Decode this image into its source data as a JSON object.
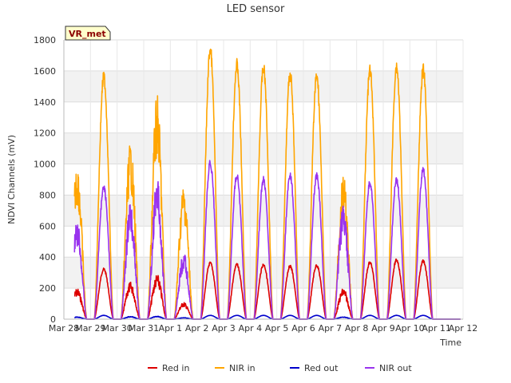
{
  "chart_data": {
    "type": "line",
    "title": "LED sensor",
    "xlabel": "Time",
    "ylabel": "NDVI Channels (mV)",
    "badge": "VR_met",
    "ylim": [
      0,
      1800
    ],
    "yticks": [
      0,
      200,
      400,
      600,
      800,
      1000,
      1200,
      1400,
      1600,
      1800
    ],
    "xlim": [
      0,
      15
    ],
    "xticks": [
      {
        "x": 0,
        "label": "Mar 28"
      },
      {
        "x": 1,
        "label": "Mar 29"
      },
      {
        "x": 2,
        "label": "Mar 30"
      },
      {
        "x": 3,
        "label": "Mar 31"
      },
      {
        "x": 4,
        "label": "Apr 1"
      },
      {
        "x": 5,
        "label": "Apr 2"
      },
      {
        "x": 6,
        "label": "Apr 3"
      },
      {
        "x": 7,
        "label": "Apr 4"
      },
      {
        "x": 8,
        "label": "Apr 5"
      },
      {
        "x": 9,
        "label": "Apr 6"
      },
      {
        "x": 10,
        "label": "Apr 7"
      },
      {
        "x": 11,
        "label": "Apr 8"
      },
      {
        "x": 12,
        "label": "Apr 9"
      },
      {
        "x": 13,
        "label": "Apr 10"
      },
      {
        "x": 14,
        "label": "Apr 11"
      },
      {
        "x": 15,
        "label": "Apr 12"
      }
    ],
    "series": [
      {
        "name": "Red in",
        "color": "#dd0000",
        "peaks": [
          {
            "day": 0.5,
            "value": 200
          },
          {
            "day": 1.5,
            "value": 330
          },
          {
            "day": 2.5,
            "value": 240
          },
          {
            "day": 3.5,
            "value": 290
          },
          {
            "day": 4.5,
            "value": 110
          },
          {
            "day": 5.5,
            "value": 370
          },
          {
            "day": 6.5,
            "value": 360
          },
          {
            "day": 7.5,
            "value": 360
          },
          {
            "day": 8.5,
            "value": 350
          },
          {
            "day": 9.5,
            "value": 355
          },
          {
            "day": 10.5,
            "value": 200
          },
          {
            "day": 11.5,
            "value": 375
          },
          {
            "day": 12.5,
            "value": 390
          },
          {
            "day": 13.5,
            "value": 385
          }
        ]
      },
      {
        "name": "NIR in",
        "color": "#ffa500",
        "peaks": [
          {
            "day": 0.5,
            "value": 1015
          },
          {
            "day": 1.5,
            "value": 1600
          },
          {
            "day": 2.5,
            "value": 1150
          },
          {
            "day": 3.5,
            "value": 1450
          },
          {
            "day": 4.5,
            "value": 870
          },
          {
            "day": 5.5,
            "value": 1780
          },
          {
            "day": 6.5,
            "value": 1680
          },
          {
            "day": 7.5,
            "value": 1660
          },
          {
            "day": 8.5,
            "value": 1620
          },
          {
            "day": 9.5,
            "value": 1600
          },
          {
            "day": 10.5,
            "value": 930
          },
          {
            "day": 11.5,
            "value": 1640
          },
          {
            "day": 12.5,
            "value": 1670
          },
          {
            "day": 13.5,
            "value": 1650
          }
        ]
      },
      {
        "name": "Red out",
        "color": "#0000cc",
        "peaks": [
          {
            "day": 0.5,
            "value": 15
          },
          {
            "day": 1.5,
            "value": 25
          },
          {
            "day": 2.5,
            "value": 18
          },
          {
            "day": 3.5,
            "value": 20
          },
          {
            "day": 4.5,
            "value": 10
          },
          {
            "day": 5.5,
            "value": 25
          },
          {
            "day": 6.5,
            "value": 25
          },
          {
            "day": 7.5,
            "value": 25
          },
          {
            "day": 8.5,
            "value": 25
          },
          {
            "day": 9.5,
            "value": 25
          },
          {
            "day": 10.5,
            "value": 15
          },
          {
            "day": 11.5,
            "value": 25
          },
          {
            "day": 12.5,
            "value": 25
          },
          {
            "day": 13.5,
            "value": 25
          }
        ]
      },
      {
        "name": "NIR out",
        "color": "#9933ee",
        "peaks": [
          {
            "day": 0.5,
            "value": 640
          },
          {
            "day": 1.5,
            "value": 870
          },
          {
            "day": 2.5,
            "value": 750
          },
          {
            "day": 3.5,
            "value": 920
          },
          {
            "day": 4.5,
            "value": 430
          },
          {
            "day": 5.5,
            "value": 1030
          },
          {
            "day": 6.5,
            "value": 950
          },
          {
            "day": 7.5,
            "value": 920
          },
          {
            "day": 8.5,
            "value": 950
          },
          {
            "day": 9.5,
            "value": 950
          },
          {
            "day": 10.5,
            "value": 730
          },
          {
            "day": 11.5,
            "value": 900
          },
          {
            "day": 12.5,
            "value": 920
          },
          {
            "day": 13.5,
            "value": 990
          }
        ]
      }
    ],
    "legend_position": "bottom-center"
  }
}
